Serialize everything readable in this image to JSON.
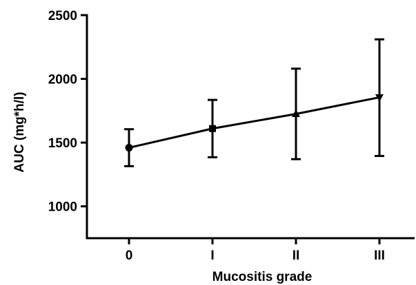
{
  "chart_data": {
    "type": "line",
    "categories": [
      "0",
      "I",
      "II",
      "III"
    ],
    "series": [
      {
        "values": [
          1460,
          1610,
          1725,
          1855
        ],
        "error_low": [
          1315,
          1385,
          1370,
          1395
        ],
        "error_high": [
          1605,
          1835,
          2080,
          2310
        ],
        "markers": [
          "circle",
          "square",
          "triangle-up",
          "triangle-down"
        ]
      }
    ],
    "xlabel": "Mucositis grade",
    "ylabel": "AUC (mg*h/l)",
    "ylim": [
      750,
      2500
    ],
    "yticks": [
      1000,
      1500,
      2000,
      2500
    ],
    "grid": false,
    "colors": {
      "line": "#000000",
      "axis": "#000000"
    }
  }
}
